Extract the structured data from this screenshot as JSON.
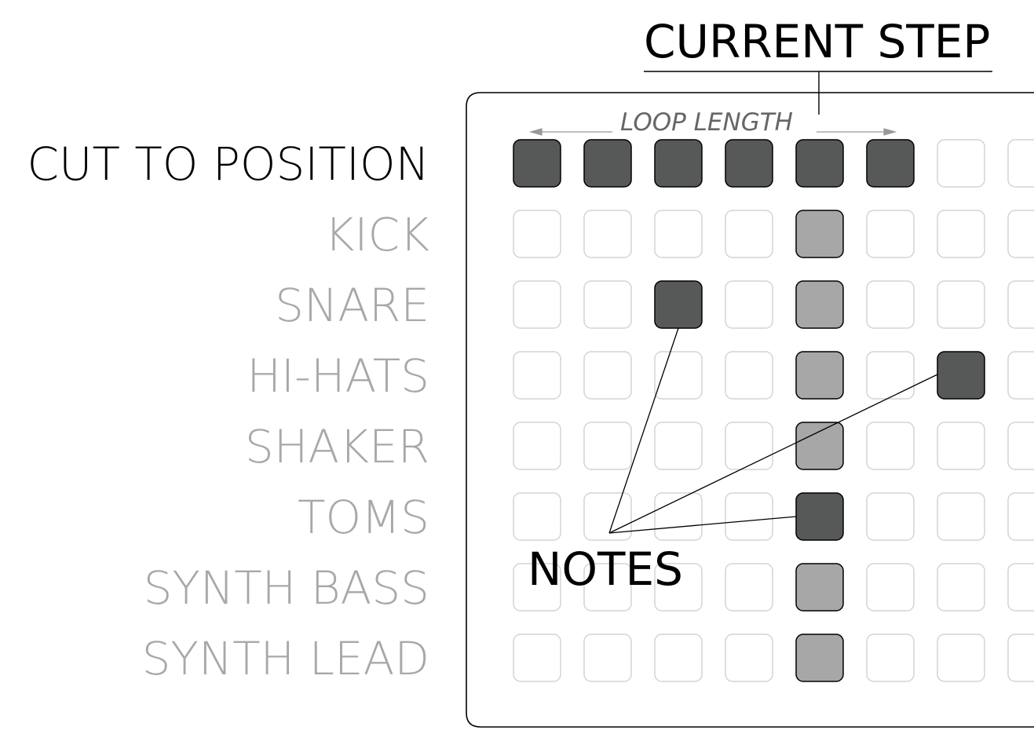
{
  "callouts": {
    "current_step": "CURRENT STEP",
    "loop_length": "LOOP LENGTH",
    "notes": "NOTES"
  },
  "rows": [
    {
      "label": "CUT TO POSITION",
      "style": "primary"
    },
    {
      "label": "KICK",
      "style": "muted"
    },
    {
      "label": "SNARE",
      "style": "muted"
    },
    {
      "label": "HI-HATS",
      "style": "muted"
    },
    {
      "label": "SHAKER",
      "style": "muted"
    },
    {
      "label": "TOMS",
      "style": "muted"
    },
    {
      "label": "SYNTH BASS",
      "style": "muted"
    },
    {
      "label": "SYNTH LEAD",
      "style": "muted"
    }
  ],
  "grid": {
    "visible_columns": 8,
    "current_step_column": 5,
    "loop_length_steps": 6,
    "colors": {
      "note": "#575958",
      "playhead": "#a6a7a6",
      "empty_border": "#d4d4d4",
      "panel_border": "#000000"
    },
    "cells": [
      [
        "note",
        "note",
        "note",
        "note",
        "note",
        "note",
        "empty",
        "empty"
      ],
      [
        "empty",
        "empty",
        "empty",
        "empty",
        "playhead",
        "empty",
        "empty",
        "empty"
      ],
      [
        "empty",
        "empty",
        "note",
        "empty",
        "playhead",
        "empty",
        "empty",
        "empty"
      ],
      [
        "empty",
        "empty",
        "empty",
        "empty",
        "playhead",
        "empty",
        "note",
        "empty"
      ],
      [
        "empty",
        "empty",
        "empty",
        "empty",
        "playhead",
        "empty",
        "empty",
        "empty"
      ],
      [
        "empty",
        "empty",
        "empty",
        "empty",
        "note",
        "empty",
        "empty",
        "empty"
      ],
      [
        "empty",
        "empty",
        "empty",
        "empty",
        "playhead",
        "empty",
        "empty",
        "empty"
      ],
      [
        "empty",
        "empty",
        "empty",
        "empty",
        "playhead",
        "empty",
        "empty",
        "empty"
      ]
    ]
  }
}
